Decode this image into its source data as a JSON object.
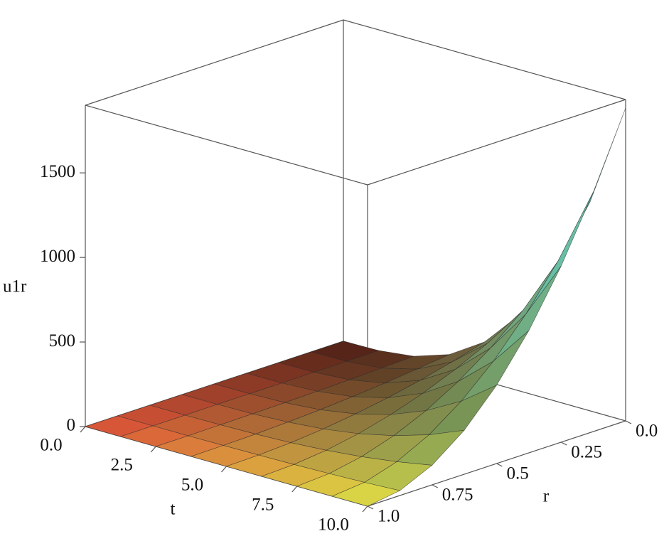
{
  "chart_data": {
    "type": "surface",
    "xlabel": "t",
    "ylabel": "r",
    "zlabel": "u1r",
    "x": [
      0,
      1.25,
      2.5,
      3.75,
      5,
      6.25,
      7.5,
      8.75,
      10
    ],
    "y": [
      0,
      0.125,
      0.25,
      0.375,
      0.5,
      0.625,
      0.75,
      0.875,
      1
    ],
    "z": [
      [
        0,
        0,
        0,
        0,
        0,
        0,
        0,
        0,
        0
      ],
      [
        4,
        3,
        2,
        1,
        1,
        1,
        0,
        0,
        0
      ],
      [
        29,
        22,
        16,
        11,
        7,
        4,
        2,
        0,
        0
      ],
      [
        98,
        75,
        55,
        38,
        24,
        14,
        6,
        2,
        0
      ],
      [
        231,
        177,
        130,
        90,
        58,
        32,
        14,
        4,
        0
      ],
      [
        451,
        345,
        254,
        176,
        113,
        63,
        28,
        7,
        0
      ],
      [
        781,
        598,
        439,
        305,
        195,
        110,
        49,
        12,
        0
      ],
      [
        1240,
        950,
        698,
        484,
        310,
        174,
        78,
        19,
        0
      ],
      [
        1850,
        1417,
        1041,
        723,
        463,
        260,
        116,
        29,
        0
      ]
    ],
    "xlim": [
      0,
      10
    ],
    "ylim": [
      0,
      1
    ],
    "zlim": [
      0,
      1900
    ],
    "xticks": [
      {
        "value": 0,
        "label": "0.0"
      },
      2.5,
      {
        "value": 5,
        "label": "5.0"
      },
      7.5,
      {
        "value": 10,
        "label": "10.0"
      }
    ],
    "yticks": [
      {
        "value": 0,
        "label": "0.0"
      },
      0.25,
      0.5,
      0.75,
      {
        "value": 1,
        "label": "1.0"
      }
    ],
    "zticks": [
      0,
      500,
      1000,
      1500
    ],
    "colormap": [
      "#e0503a",
      "#f2ea3c",
      "#4cbcc4"
    ]
  }
}
